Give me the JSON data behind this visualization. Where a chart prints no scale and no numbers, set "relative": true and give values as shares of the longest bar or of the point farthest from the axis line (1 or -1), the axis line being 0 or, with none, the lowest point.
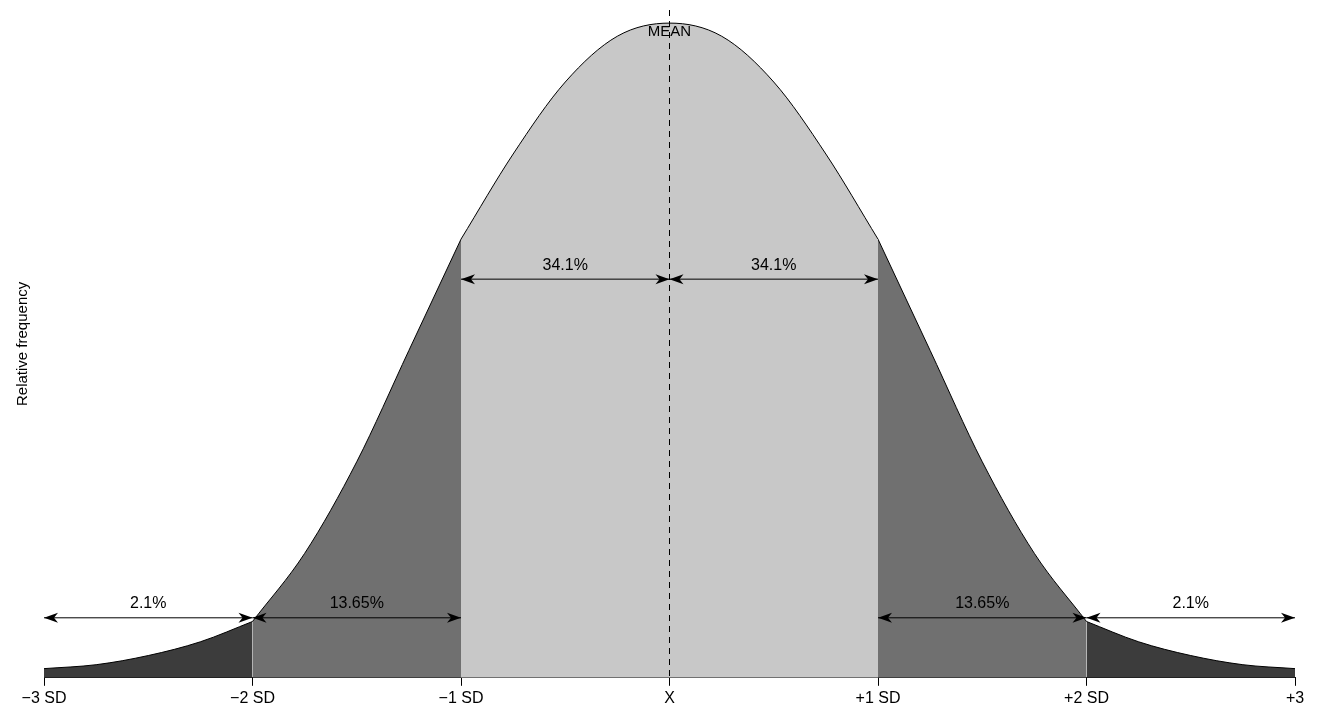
{
  "chart_data": {
    "type": "area",
    "ylabel": "Relative frequency",
    "relative": true,
    "xlim": [
      -3,
      3
    ],
    "xticks": [
      {
        "value": -3,
        "label": "−3 SD"
      },
      {
        "value": -2,
        "label": "−2 SD"
      },
      {
        "value": -1,
        "label": "−1 SD"
      },
      {
        "value": 0,
        "label": "X"
      },
      {
        "value": 1,
        "label": "+1 SD"
      },
      {
        "value": 2,
        "label": "+2 SD"
      },
      {
        "value": 3,
        "label": "+3"
      }
    ],
    "series": [
      {
        "color": "#3c3c3c",
        "x": [
          -3,
          -2.75,
          -2.5,
          -2.25,
          -2
        ],
        "values": [
          0.014,
          0.02,
          0.034,
          0.055,
          0.086
        ]
      },
      {
        "color": "#707070",
        "x": [
          -2,
          -1.75,
          -1.5,
          -1.25,
          -1
        ],
        "values": [
          0.086,
          0.19,
          0.33,
          0.5,
          0.67
        ]
      },
      {
        "color": "#c8c8c8",
        "x": [
          -1,
          -0.75,
          -0.5,
          -0.25,
          0,
          0.25,
          0.5,
          0.75,
          1
        ],
        "values": [
          0.67,
          0.8,
          0.91,
          0.98,
          1,
          0.98,
          0.91,
          0.8,
          0.67
        ]
      },
      {
        "color": "#707070",
        "x": [
          1,
          1.25,
          1.5,
          1.75,
          2
        ],
        "values": [
          0.67,
          0.5,
          0.33,
          0.19,
          0.086
        ]
      },
      {
        "color": "#3c3c3c",
        "x": [
          2,
          2.25,
          2.5,
          2.75,
          3
        ],
        "values": [
          0.086,
          0.055,
          0.034,
          0.02,
          0.014
        ]
      }
    ],
    "ref_lines": [
      {
        "axis": "x",
        "value": 0,
        "label": "MEAN",
        "line_style": "dashed",
        "color": "#000000"
      }
    ],
    "annotations": [
      "2.1%",
      "13.65%",
      "34.1%",
      "34.1%",
      "13.65%",
      "2.1%"
    ],
    "grid": false,
    "legend": false,
    "marker": "none",
    "line_style": "solid"
  }
}
